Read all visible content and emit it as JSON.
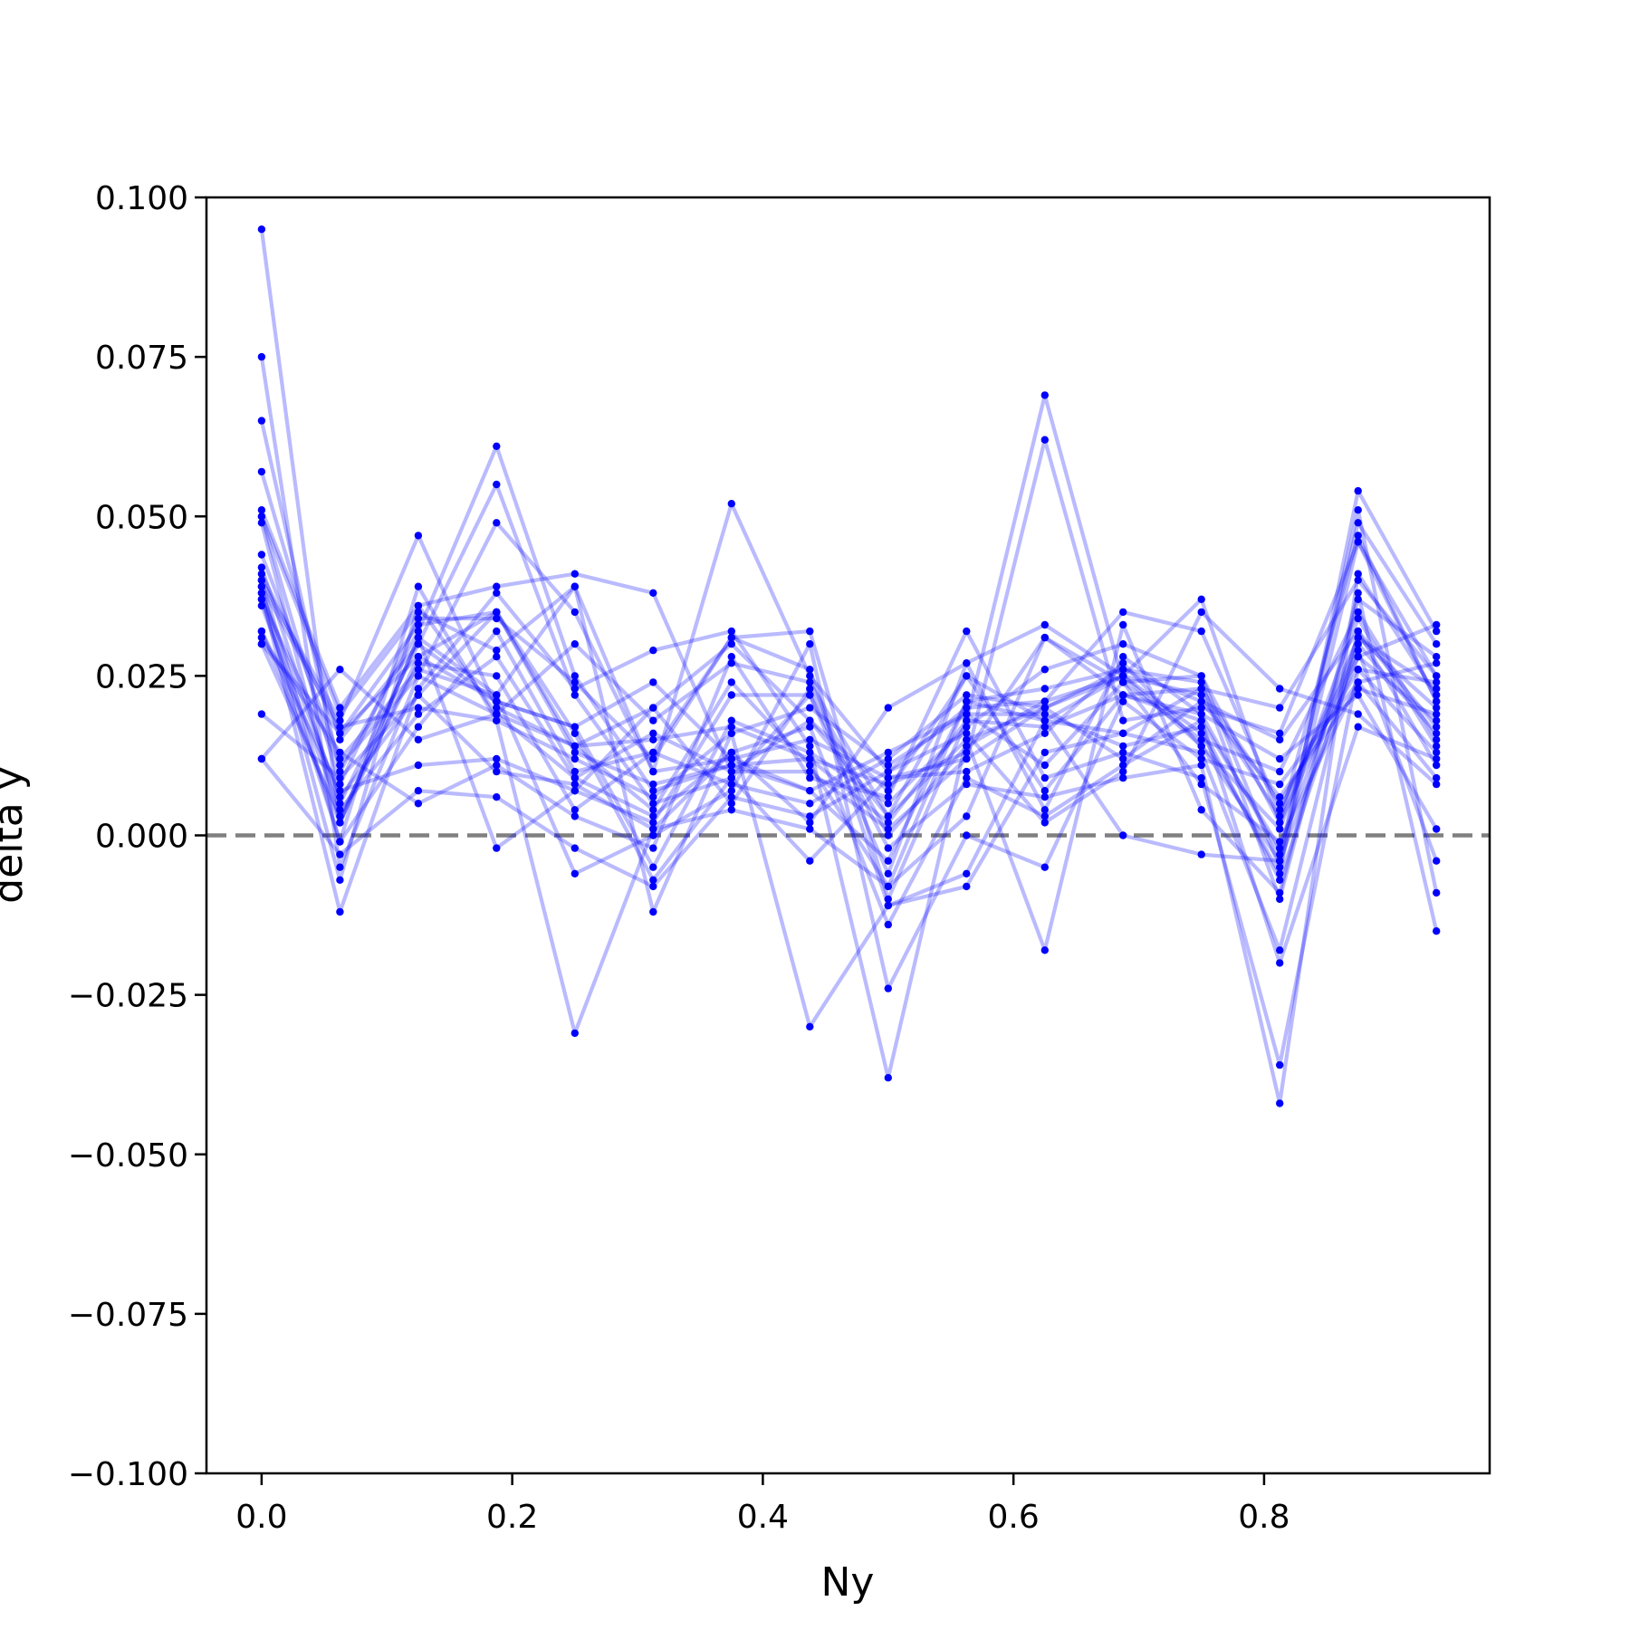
{
  "chart_data": {
    "type": "line",
    "xlabel": "Ny",
    "ylabel": "delta y",
    "xlim": [
      -0.044,
      0.98
    ],
    "ylim": [
      -0.1,
      0.1
    ],
    "x_ticks": [
      0.0,
      0.2,
      0.4,
      0.6,
      0.8
    ],
    "x_tick_labels": [
      "0.0",
      "0.2",
      "0.4",
      "0.6",
      "0.8"
    ],
    "y_ticks": [
      0.1,
      0.075,
      0.05,
      0.025,
      0.0,
      -0.025,
      -0.05,
      -0.075,
      -0.1
    ],
    "y_tick_labels": [
      "0.100",
      "0.075",
      "0.050",
      "0.025",
      "0.000",
      "−0.025",
      "−0.050",
      "−0.075",
      "−0.100"
    ],
    "reference_line": {
      "y": 0.0,
      "style": "dashed",
      "color": "#808080"
    },
    "series_color": "#0000ff",
    "grid": false,
    "x": [
      0.0,
      0.0625,
      0.125,
      0.1875,
      0.25,
      0.3125,
      0.375,
      0.4375,
      0.5,
      0.5625,
      0.625,
      0.6875,
      0.75,
      0.8125,
      0.875,
      0.9375
    ],
    "series": [
      {
        "values": [
          0.095,
          0.002,
          0.028,
          0.035,
          0.014,
          0.02,
          0.03,
          0.018,
          0.003,
          0.015,
          0.02,
          0.025,
          0.022,
          0.003,
          0.031,
          0.02
        ]
      },
      {
        "values": [
          0.075,
          -0.005,
          0.025,
          0.049,
          0.035,
          0.01,
          0.012,
          0.015,
          0.009,
          0.012,
          0.02,
          0.026,
          0.024,
          -0.01,
          0.037,
          0.028
        ]
      },
      {
        "values": [
          0.065,
          0.01,
          0.032,
          0.061,
          0.025,
          0.007,
          0.011,
          0.012,
          0.002,
          0.018,
          0.017,
          0.022,
          0.019,
          -0.003,
          0.049,
          0.03
        ]
      },
      {
        "values": [
          0.057,
          0.015,
          0.03,
          0.055,
          0.022,
          0.005,
          0.009,
          0.022,
          -0.006,
          0.027,
          0.033,
          0.025,
          0.016,
          -0.006,
          0.054,
          0.032
        ]
      },
      {
        "values": [
          0.051,
          0.02,
          0.036,
          0.039,
          0.041,
          0.038,
          0.01,
          0.01,
          0.001,
          0.012,
          0.062,
          0.018,
          0.02,
          0.016,
          0.046,
          0.025
        ]
      },
      {
        "values": [
          0.05,
          0.008,
          0.034,
          0.034,
          0.024,
          0.012,
          0.031,
          0.032,
          -0.01,
          0.018,
          0.069,
          0.024,
          0.015,
          0.01,
          0.035,
          0.015
        ]
      },
      {
        "values": [
          0.044,
          0.012,
          0.026,
          0.022,
          0.039,
          0.01,
          0.052,
          0.025,
          0.01,
          0.02,
          0.021,
          0.025,
          0.014,
          -0.004,
          0.028,
          0.018
        ]
      },
      {
        "values": [
          0.042,
          0.005,
          0.03,
          0.021,
          0.017,
          -0.005,
          0.018,
          0.013,
          0.005,
          0.017,
          0.026,
          0.03,
          0.025,
          0.002,
          0.047,
          0.021
        ]
      },
      {
        "values": [
          0.04,
          0.018,
          0.047,
          0.02,
          0.014,
          0.015,
          0.017,
          0.012,
          0.008,
          0.013,
          0.031,
          0.022,
          0.023,
          0.005,
          0.026,
          0.024
        ]
      },
      {
        "values": [
          0.039,
          0.017,
          0.02,
          0.018,
          0.012,
          0.006,
          0.016,
          0.02,
          0.011,
          0.019,
          0.019,
          0.014,
          0.017,
          -0.007,
          0.03,
          0.016
        ]
      },
      {
        "values": [
          0.038,
          0.006,
          0.022,
          0.035,
          0.013,
          0.008,
          0.011,
          0.007,
          -0.004,
          0.021,
          0.018,
          0.016,
          0.013,
          -0.018,
          0.032,
          0.011
        ]
      },
      {
        "values": [
          0.037,
          -0.001,
          0.017,
          0.032,
          0.01,
          0.013,
          0.008,
          0.005,
          0.012,
          0.022,
          0.02,
          0.012,
          0.021,
          0.006,
          0.023,
          0.019
        ]
      },
      {
        "values": [
          0.036,
          0.004,
          0.019,
          0.028,
          0.009,
          0.003,
          0.013,
          0.017,
          -0.014,
          0.009,
          0.003,
          0.011,
          0.018,
          -0.02,
          0.017,
          0.012
        ]
      },
      {
        "values": [
          0.032,
          0.007,
          0.011,
          0.012,
          0.007,
          0.002,
          0.022,
          0.022,
          -0.002,
          0.008,
          0.006,
          0.009,
          0.011,
          -0.042,
          0.041,
          0.022
        ]
      },
      {
        "values": [
          0.031,
          0.013,
          0.005,
          0.011,
          0.003,
          -0.002,
          0.028,
          0.009,
          0.006,
          0.032,
          0.009,
          0.013,
          0.009,
          -0.036,
          0.026,
          0.013
        ]
      },
      {
        "values": [
          0.03,
          0.016,
          0.028,
          0.021,
          0.017,
          0.024,
          0.012,
          0.007,
          0.013,
          0.019,
          0.011,
          0.024,
          0.008,
          -0.001,
          0.024,
          0.009
        ]
      },
      {
        "values": [
          0.019,
          0.009,
          0.022,
          0.01,
          0.008,
          0.001,
          0.013,
          0.002,
          0.02,
          0.027,
          0.004,
          0.028,
          0.019,
          0.012,
          0.022,
          0.001
        ]
      },
      {
        "values": [
          0.012,
          -0.003,
          0.007,
          0.006,
          -0.002,
          -0.008,
          0.006,
          0.003,
          0.01,
          0.016,
          0.002,
          0.01,
          0.035,
          0.023,
          0.019,
          0.008
        ]
      },
      {
        "values": [
          0.012,
          0.026,
          0.015,
          0.019,
          0.03,
          0.018,
          0.027,
          0.024,
          0.003,
          0.025,
          0.018,
          0.025,
          0.037,
          0.002,
          0.028,
          0.033
        ]
      },
      {
        "values": [
          0.049,
          0.002,
          0.031,
          -0.002,
          0.007,
          0.02,
          0.005,
          0.023,
          0.0,
          0.014,
          0.021,
          0.035,
          0.032,
          0.004,
          0.029,
          -0.004
        ]
      },
      {
        "values": [
          0.041,
          0.016,
          0.033,
          0.035,
          0.016,
          -0.007,
          0.009,
          -0.004,
          0.009,
          0.01,
          0.016,
          0.027,
          0.014,
          0.001,
          0.034,
          0.014
        ]
      },
      {
        "values": [
          0.039,
          -0.007,
          0.036,
          0.019,
          0.014,
          0.004,
          0.024,
          0.011,
          -0.008,
          0.021,
          0.023,
          0.026,
          0.021,
          0.015,
          0.032,
          0.017
        ]
      },
      {
        "values": [
          0.037,
          0.011,
          0.025,
          0.019,
          0.009,
          0.016,
          0.01,
          0.018,
          0.007,
          0.025,
          0.007,
          0.022,
          0.018,
          -0.002,
          0.031,
          0.023
        ]
      },
      {
        "values": [
          0.032,
          0.002,
          0.031,
          0.022,
          -0.006,
          0.0,
          0.007,
          0.03,
          -0.024,
          0.0,
          -0.005,
          0.021,
          0.012,
          0.008,
          0.024,
          0.027
        ]
      },
      {
        "values": [
          0.038,
          -0.012,
          0.023,
          0.038,
          0.023,
          0.029,
          0.032,
          0.014,
          -0.038,
          0.015,
          -0.018,
          0.033,
          0.004,
          -0.009,
          0.038,
          -0.015
        ]
      },
      {
        "values": [
          0.05,
          0.019,
          0.035,
          0.029,
          0.039,
          -0.012,
          0.016,
          -0.03,
          -0.011,
          -0.008,
          0.013,
          0.016,
          0.023,
          0.02,
          0.04,
          0.025
        ]
      },
      {
        "values": [
          0.04,
          -0.001,
          0.039,
          0.018,
          -0.031,
          0.001,
          0.004,
          0.001,
          -0.008,
          0.003,
          0.031,
          0.024,
          0.025,
          -0.005,
          0.046,
          0.021
        ]
      },
      {
        "values": [
          0.03,
          0.003,
          0.027,
          0.025,
          0.004,
          0.013,
          0.031,
          0.026,
          -0.011,
          -0.006,
          0.018,
          0.0,
          -0.003,
          -0.004,
          0.051,
          -0.009
        ]
      }
    ]
  }
}
